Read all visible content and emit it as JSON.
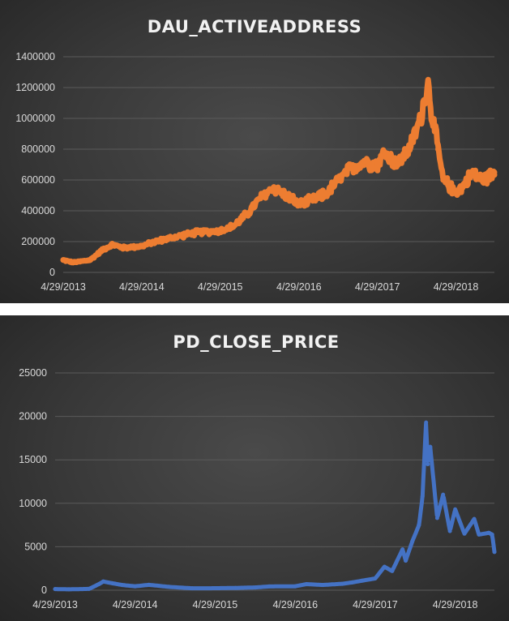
{
  "chart_data": [
    {
      "type": "line",
      "title": "DAU_ACTIVEADDRESS",
      "xlabel": "",
      "ylabel": "",
      "ylim": [
        0,
        1400000
      ],
      "yticks": [
        "0",
        "200000",
        "400000",
        "600000",
        "800000",
        "1000000",
        "1200000",
        "1400000"
      ],
      "xticks": [
        "4/29/2013",
        "4/29/2014",
        "4/29/2015",
        "4/29/2016",
        "4/29/2017",
        "4/29/2018"
      ],
      "xlim": [
        "2013-04-29",
        "2018-10-25"
      ],
      "grid": true,
      "color": "#ed7d31",
      "x": [
        "2013-04-29",
        "2013-06-15",
        "2013-09-01",
        "2013-11-01",
        "2013-12-15",
        "2014-02-01",
        "2014-04-29",
        "2014-07-01",
        "2014-09-01",
        "2014-11-01",
        "2015-01-15",
        "2015-04-29",
        "2015-07-01",
        "2015-09-01",
        "2015-11-01",
        "2016-01-01",
        "2016-03-01",
        "2016-04-29",
        "2016-07-01",
        "2016-09-01",
        "2016-11-01",
        "2017-01-01",
        "2017-03-01",
        "2017-04-29",
        "2017-06-01",
        "2017-08-01",
        "2017-10-01",
        "2017-11-15",
        "2017-12-20",
        "2018-01-10",
        "2018-02-05",
        "2018-03-01",
        "2018-04-29",
        "2018-06-01",
        "2018-07-15",
        "2018-09-01",
        "2018-10-25"
      ],
      "series": [
        {
          "values": [
            80000,
            65000,
            80000,
            150000,
            180000,
            160000,
            170000,
            200000,
            220000,
            240000,
            260000,
            270000,
            300000,
            380000,
            480000,
            550000,
            500000,
            440000,
            470000,
            510000,
            600000,
            680000,
            720000,
            700000,
            780000,
            700000,
            820000,
            1000000,
            1230000,
            1000000,
            800000,
            600000,
            520000,
            560000,
            650000,
            600000,
            650000
          ]
        }
      ]
    },
    {
      "type": "line",
      "title": "PD_CLOSE_PRICE",
      "xlabel": "",
      "ylabel": "",
      "ylim": [
        0,
        25000
      ],
      "yticks": [
        "0",
        "5000",
        "10000",
        "15000",
        "20000",
        "25000"
      ],
      "xticks": [
        "4/29/2013",
        "4/29/2014",
        "4/29/2015",
        "4/29/2016",
        "4/29/2017",
        "4/29/2018"
      ],
      "xlim": [
        "2013-04-29",
        "2018-10-25"
      ],
      "grid": true,
      "color": "#4472c4",
      "x": [
        "2013-04-29",
        "2013-07-01",
        "2013-10-01",
        "2013-11-15",
        "2013-12-05",
        "2014-01-15",
        "2014-03-01",
        "2014-04-29",
        "2014-07-01",
        "2014-10-01",
        "2015-01-15",
        "2015-04-29",
        "2015-08-01",
        "2015-11-01",
        "2016-01-01",
        "2016-04-29",
        "2016-06-20",
        "2016-09-01",
        "2016-12-01",
        "2017-01-15",
        "2017-03-01",
        "2017-04-29",
        "2017-06-10",
        "2017-07-15",
        "2017-09-01",
        "2017-09-15",
        "2017-10-15",
        "2017-11-15",
        "2017-12-01",
        "2017-12-17",
        "2017-12-25",
        "2018-01-05",
        "2018-02-06",
        "2018-03-05",
        "2018-04-05",
        "2018-04-29",
        "2018-06-10",
        "2018-07-25",
        "2018-08-15",
        "2018-09-30",
        "2018-10-15",
        "2018-10-25"
      ],
      "series": [
        {
          "values": [
            130,
            100,
            150,
            700,
            1000,
            800,
            600,
            450,
            620,
            380,
            220,
            230,
            260,
            320,
            430,
            450,
            700,
            600,
            740,
            900,
            1100,
            1350,
            2700,
            2200,
            4700,
            3400,
            5600,
            7500,
            10800,
            19300,
            14500,
            16500,
            8300,
            11000,
            6800,
            9300,
            6500,
            8200,
            6400,
            6600,
            6400,
            4400
          ]
        }
      ]
    }
  ]
}
